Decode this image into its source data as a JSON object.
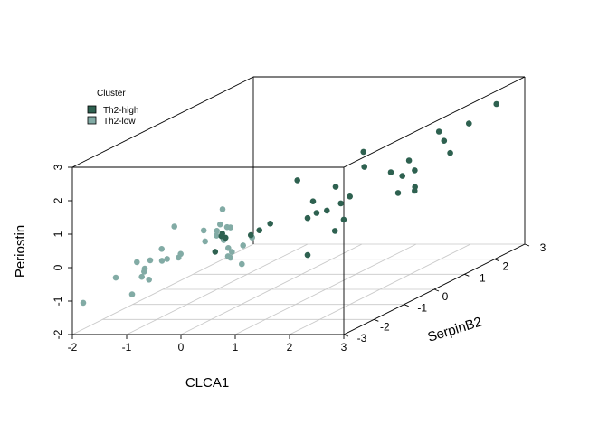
{
  "chart_data": {
    "type": "scatter3d",
    "title": "",
    "xlabel": "CLCA1",
    "ylabel": "SerpinB2",
    "zlabel": "Periostin",
    "xlim": [
      -2,
      3
    ],
    "ylim": [
      -3,
      3
    ],
    "zlim": [
      -2,
      3
    ],
    "x_ticks": [
      "-2",
      "-1",
      "0",
      "1",
      "2",
      "3"
    ],
    "y_ticks": [
      "-3",
      "-2",
      "-1",
      "0",
      "1",
      "2",
      "3"
    ],
    "z_ticks": [
      "-2",
      "-1",
      "0",
      "1",
      "2",
      "3"
    ],
    "grid": true,
    "legend": {
      "title": "Cluster",
      "placement": "top-left",
      "entries": [
        {
          "label": "Th2-high",
          "color": "#2e6150"
        },
        {
          "label": "Th2-low",
          "color": "#82aba5"
        }
      ]
    },
    "series": [
      {
        "name": "Th2-high",
        "color": "#2e6150",
        "points": [
          [
            2.7,
            2.6,
            2.37
          ],
          [
            2.25,
            2.5,
            1.83
          ],
          [
            1.92,
            2.1,
            1.77
          ],
          [
            2.18,
            1.8,
            1.63
          ],
          [
            2.46,
            1.5,
            1.4
          ],
          [
            1.98,
            1.0,
            1.4
          ],
          [
            2.14,
            0.9,
            1.15
          ],
          [
            2.2,
            0.8,
            0.7
          ],
          [
            2.25,
            0.7,
            0.63
          ],
          [
            2.0,
            0.6,
            0.61
          ],
          [
            1.25,
            0.8,
            1.75
          ],
          [
            1.6,
            0.2,
            1.57
          ],
          [
            1.35,
            -0.3,
            1.2
          ],
          [
            1.5,
            -0.4,
            0.75
          ],
          [
            1.5,
            -0.1,
            0.82
          ],
          [
            1.3,
            -0.5,
            0.58
          ],
          [
            0.7,
            -0.4,
            1.44
          ],
          [
            1.1,
            -0.6,
            0.9
          ],
          [
            1.22,
            -0.7,
            0.6
          ],
          [
            1.0,
            -0.6,
            0.4
          ],
          [
            0.7,
            -1.3,
            0.55
          ],
          [
            0.5,
            -1.3,
            0.35
          ],
          [
            0.15,
            -1.9,
            0.52
          ],
          [
            0.08,
            -1.8,
            0.4
          ],
          [
            0.4,
            -1.4,
            0.25
          ],
          [
            0.1,
            -1.7,
            0.31
          ],
          [
            1.72,
            -0.7,
            0.4
          ],
          [
            2.2,
            0.0,
            1.5
          ],
          [
            1.67,
            -0.9,
            0.15
          ],
          [
            0.13,
            -2.1,
            0.07
          ],
          [
            1.5,
            -1.5,
            -0.3
          ],
          [
            2.3,
            0.2,
            1.3
          ]
        ]
      },
      {
        "name": "Th2-low",
        "color": "#82aba5",
        "points": [
          [
            -0.2,
            -1.0,
            0.3
          ],
          [
            -0.4,
            -0.9,
            0.8
          ],
          [
            -0.15,
            -1.2,
            0.4
          ],
          [
            -0.5,
            -0.8,
            0.3
          ],
          [
            -0.4,
            -1.1,
            0.1
          ],
          [
            -0.58,
            -1.2,
            0.3
          ],
          [
            -0.45,
            -1.0,
            0.2
          ],
          [
            -0.5,
            -1.3,
            0.02
          ],
          [
            -0.1,
            -1.4,
            0.1
          ],
          [
            0.2,
            -1.0,
            0.0
          ],
          [
            0.05,
            -1.4,
            -0.25
          ],
          [
            -0.45,
            -2.2,
            0.05
          ],
          [
            -0.6,
            -2.0,
            -0.15
          ],
          [
            -0.7,
            -2.2,
            -0.1
          ],
          [
            -0.85,
            -2.1,
            -0.2
          ],
          [
            -0.9,
            -2.4,
            -0.05
          ],
          [
            -1.2,
            -2.3,
            -0.15
          ],
          [
            -1.0,
            -2.4,
            -0.3
          ],
          [
            -0.7,
            -2.8,
            -0.45
          ],
          [
            -1.0,
            -2.5,
            -0.5
          ],
          [
            -0.9,
            -2.6,
            -0.3
          ],
          [
            -1.2,
            -3.0,
            -0.3
          ],
          [
            0.3,
            -1.9,
            -0.2
          ],
          [
            -0.8,
            -2.2,
            0.2
          ],
          [
            0.15,
            -1.7,
            0.0
          ],
          [
            0.2,
            -1.8,
            -0.2
          ],
          [
            -0.9,
            -3.0,
            -0.8
          ],
          [
            -0.9,
            -1.6,
            0.6
          ],
          [
            0.2,
            -1.3,
            -0.1
          ],
          [
            -1.8,
            -3.0,
            -1.05
          ],
          [
            0.4,
            -1.7,
            -0.48
          ],
          [
            0.0,
            -1.6,
            0.25
          ]
        ]
      }
    ]
  }
}
